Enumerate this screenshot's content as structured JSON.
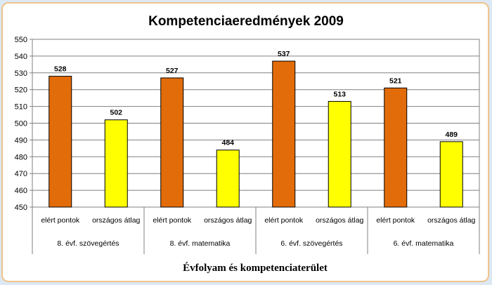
{
  "chart_data": {
    "type": "bar",
    "title": "Kompetenciaeredmények 2009",
    "xlabel": "Évfolyam és kompetenciaterület",
    "ylabel": "",
    "ylim": [
      450,
      550
    ],
    "ytick_step": 10,
    "groups": [
      "8. évf. szövegértés",
      "8. évf. matematika",
      "6. évf. szövegértés",
      "6. évf. matematika"
    ],
    "categories": [
      "elért pontok",
      "országos átlag",
      "elért pontok",
      "országos átlag",
      "elért pontok",
      "országos átlag",
      "elért pontok",
      "országos átlag"
    ],
    "values": [
      528,
      502,
      527,
      484,
      537,
      513,
      521,
      489
    ],
    "colors": [
      "#e36c0a",
      "#ffff00",
      "#e36c0a",
      "#ffff00",
      "#e36c0a",
      "#ffff00",
      "#e36c0a",
      "#ffff00"
    ],
    "grid": true,
    "legend": "none"
  }
}
